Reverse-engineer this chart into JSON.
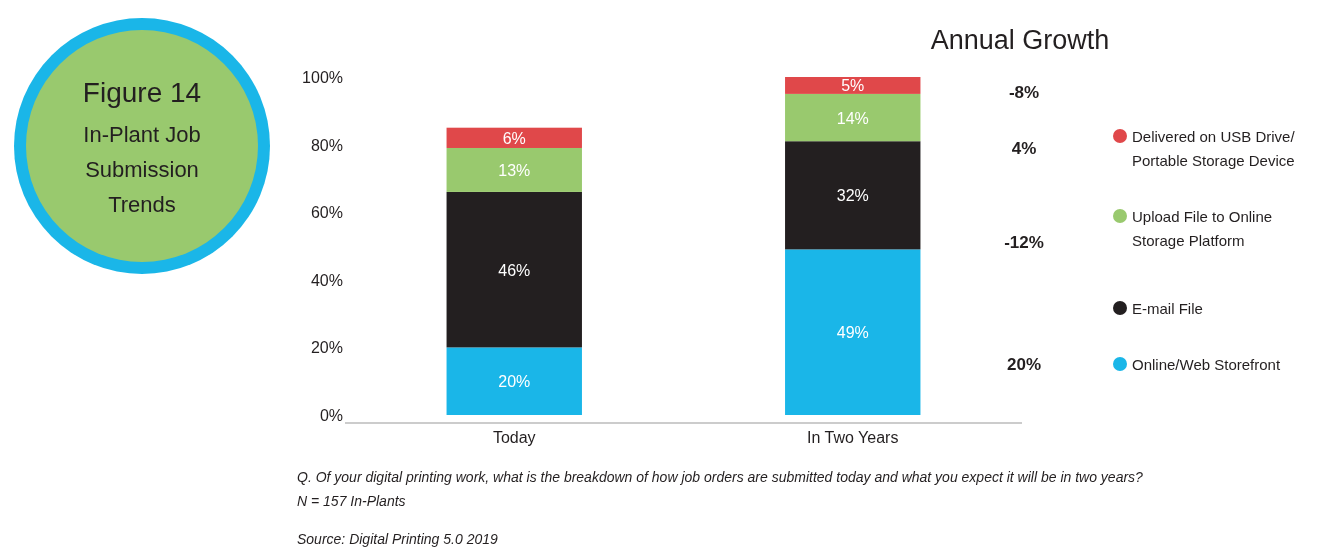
{
  "chart_data": {
    "type": "bar",
    "stacked": true,
    "title": "Figure 14",
    "subtitle": "In-Plant Job Submission Trends",
    "categories": [
      "Today",
      "In Two Years"
    ],
    "series": [
      {
        "name": "Online/Web Storefront",
        "color": "#1ab6e8",
        "values": [
          20,
          49
        ],
        "value_labels": [
          "20%",
          "49%"
        ]
      },
      {
        "name": "E-mail File",
        "color": "#231f20",
        "values": [
          46,
          32
        ],
        "value_labels": [
          "46%",
          "32%"
        ]
      },
      {
        "name": "Upload File to Online Storage Platform",
        "color": "#99c96e",
        "values": [
          13,
          14
        ],
        "value_labels": [
          "13%",
          "14%"
        ]
      },
      {
        "name": "Delivered on USB Drive/ Portable Storage Device",
        "color": "#e0484a",
        "values": [
          6,
          5
        ],
        "value_labels": [
          "6%",
          "5%"
        ]
      }
    ],
    "ylim": [
      0,
      100
    ],
    "yticks": [
      {
        "value": 0,
        "label": "0%"
      },
      {
        "value": 20,
        "label": "20%"
      },
      {
        "value": 40,
        "label": "40%"
      },
      {
        "value": 60,
        "label": "60%"
      },
      {
        "value": 80,
        "label": "80%"
      },
      {
        "value": 100,
        "label": "100%"
      }
    ],
    "legend": "right",
    "annotations": [
      "Annual Growth",
      "-8%",
      "4%",
      "-12%",
      "20%",
      "Q. Of your digital printing work, what is the breakdown of how job orders are submitted today and what you expect it will be in two years?",
      "N = 157 In-Plants",
      "Source: Digital Printing 5.0 2019"
    ]
  }
}
